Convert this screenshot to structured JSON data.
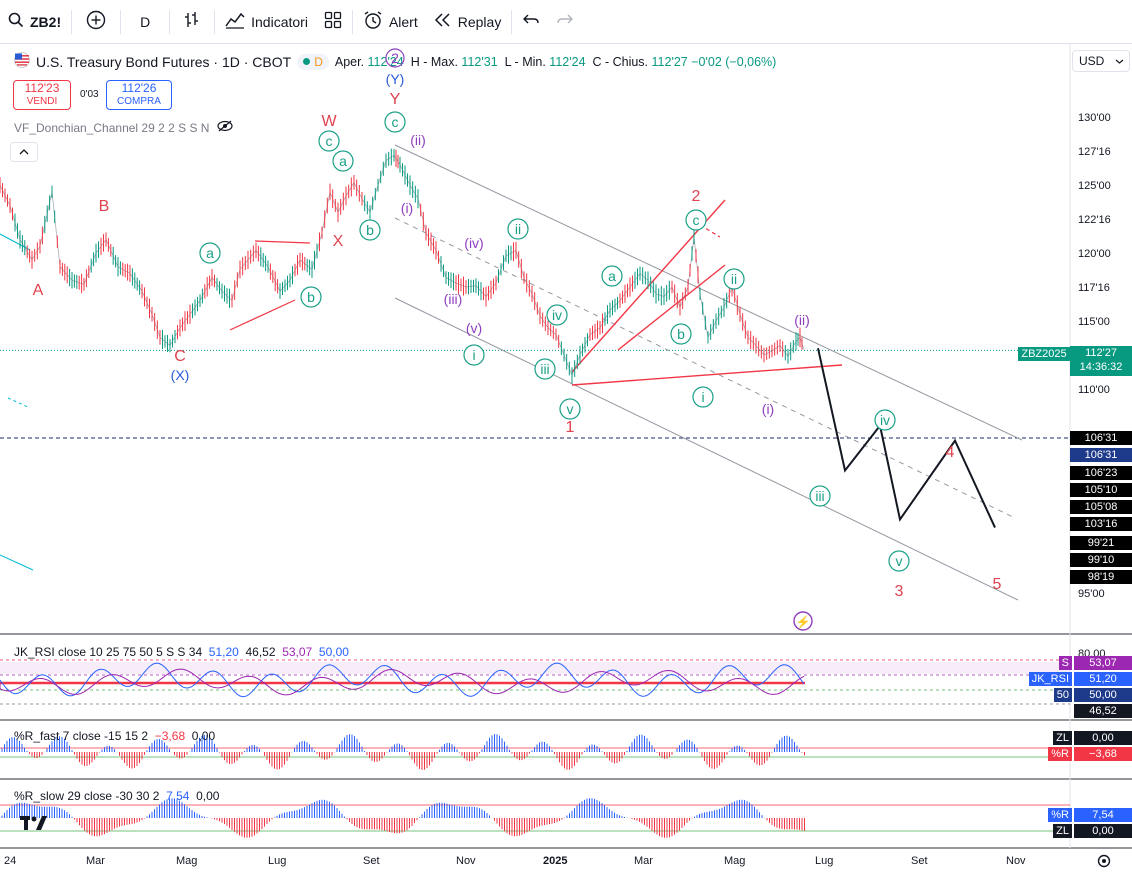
{
  "toolbar": {
    "symbol": "ZB2!",
    "interval": "D",
    "indicators_label": "Indicatori",
    "alert_label": "Alert",
    "replay_label": "Replay"
  },
  "legend": {
    "title": "U.S. Treasury Bond Futures · 1D · CBOT",
    "badge": "D",
    "open_label": "Aper.",
    "open": "112'24",
    "high_label": "H - Max.",
    "high": "112'31",
    "low_label": "L - Min.",
    "low": "112'24",
    "close_label": "C - Chius.",
    "close": "112'27",
    "change": "−0'02 (−0,06%)"
  },
  "sell": {
    "price": "112'23",
    "label": "VENDI"
  },
  "spread": "0'03",
  "buy": {
    "price": "112'26",
    "label": "COMPRA"
  },
  "indicator_name": "VF_Donchian_Channel 29 2 2 S S N",
  "currency": "USD",
  "colors": {
    "up": "#089981",
    "down": "#f23645",
    "wave_red": "#e0424f",
    "wave_teal": "#1aa087",
    "wave_purple": "#8e3fbf",
    "wave_blue": "#2a5bd7"
  },
  "chart_data": {
    "type": "line",
    "title": "U.S. Treasury Bond Futures · 1D · CBOT",
    "ylim": [
      93,
      132
    ],
    "y_ticks": [
      "130'00",
      "127'16",
      "125'00",
      "122'16",
      "120'00",
      "117'16",
      "115'00",
      "110'00",
      "95'00"
    ],
    "x_ticks": [
      "24",
      "Mar",
      "Mag",
      "Lug",
      "Set",
      "Nov",
      "2025",
      "Mar",
      "Mag",
      "Lug",
      "Set",
      "Nov"
    ],
    "series": [
      {
        "values": [
          [
            0,
            125
          ],
          [
            10,
            123.5
          ],
          [
            20,
            121
          ],
          [
            32,
            119.5
          ],
          [
            40,
            120.5
          ],
          [
            52,
            124.5
          ],
          [
            60,
            119
          ],
          [
            72,
            118
          ],
          [
            84,
            117.7
          ],
          [
            96,
            120
          ],
          [
            106,
            121
          ],
          [
            118,
            119
          ],
          [
            130,
            118.5
          ],
          [
            142,
            117.2
          ],
          [
            152,
            115.5
          ],
          [
            160,
            113.8
          ],
          [
            170,
            113.2
          ],
          [
            180,
            114.5
          ],
          [
            190,
            115.5
          ],
          [
            200,
            116.5
          ],
          [
            212,
            118.2
          ],
          [
            222,
            117.2
          ],
          [
            232,
            116.5
          ],
          [
            240,
            118.8
          ],
          [
            248,
            119.5
          ],
          [
            256,
            120.2
          ],
          [
            268,
            119
          ],
          [
            280,
            117.2
          ],
          [
            290,
            118
          ],
          [
            300,
            119.5
          ],
          [
            312,
            118.8
          ],
          [
            322,
            121.5
          ],
          [
            330,
            124.5
          ],
          [
            338,
            123
          ],
          [
            346,
            124.2
          ],
          [
            354,
            125.2
          ],
          [
            362,
            124
          ],
          [
            370,
            123
          ],
          [
            378,
            125
          ],
          [
            386,
            126.8
          ],
          [
            394,
            127.2
          ],
          [
            400,
            126.5
          ],
          [
            410,
            125
          ],
          [
            418,
            124
          ],
          [
            426,
            121.5
          ],
          [
            436,
            120.2
          ],
          [
            446,
            118.2
          ],
          [
            456,
            117.8
          ],
          [
            466,
            117.5
          ],
          [
            476,
            117.6
          ],
          [
            486,
            116.8
          ],
          [
            496,
            117.8
          ],
          [
            506,
            119.8
          ],
          [
            516,
            120.2
          ],
          [
            524,
            118.2
          ],
          [
            532,
            117
          ],
          [
            540,
            115.4
          ],
          [
            548,
            114.5
          ],
          [
            556,
            114
          ],
          [
            564,
            112.5
          ],
          [
            572,
            111
          ],
          [
            580,
            112.5
          ],
          [
            590,
            114
          ],
          [
            600,
            114.5
          ],
          [
            610,
            115.8
          ],
          [
            620,
            116.5
          ],
          [
            630,
            117.5
          ],
          [
            640,
            118.5
          ],
          [
            648,
            118
          ],
          [
            656,
            117
          ],
          [
            664,
            116.8
          ],
          [
            672,
            117.5
          ],
          [
            680,
            116
          ],
          [
            688,
            117.5
          ],
          [
            694,
            121.2
          ],
          [
            700,
            117
          ],
          [
            708,
            113.8
          ],
          [
            716,
            115
          ],
          [
            724,
            116
          ],
          [
            732,
            117.5
          ],
          [
            740,
            115.5
          ],
          [
            748,
            113.8
          ],
          [
            756,
            113.2
          ],
          [
            764,
            112.5
          ],
          [
            772,
            112.8
          ],
          [
            780,
            113.2
          ],
          [
            788,
            112.4
          ],
          [
            796,
            113.5
          ],
          [
            800,
            113.8
          ],
          [
            804,
            112.9
          ]
        ]
      }
    ],
    "projections": {
      "ylim_note": "black projection path",
      "path": [
        [
          818,
          113
        ],
        [
          845,
          104
        ],
        [
          880,
          107.3
        ],
        [
          900,
          100.4
        ],
        [
          955,
          106.2
        ],
        [
          995,
          99.8
        ]
      ]
    },
    "current_price_label": "ZBZ2025",
    "current_price": "112'27",
    "countdown": "14:36:32",
    "level_tags": [
      "106'31",
      "106'31",
      "106'23",
      "105'10",
      "105'08",
      "103'16",
      "99'21",
      "99'10",
      "98'19"
    ],
    "wave_labels": [
      {
        "t": "A",
        "c": "red"
      },
      {
        "t": "B",
        "c": "red"
      },
      {
        "t": "C",
        "c": "red"
      },
      {
        "t": "(X)",
        "c": "blue"
      },
      {
        "t": "a",
        "c": "teal"
      },
      {
        "t": "b",
        "c": "teal"
      },
      {
        "t": "W",
        "c": "red"
      },
      {
        "t": "X",
        "c": "red"
      },
      {
        "t": "c",
        "c": "teal"
      },
      {
        "t": "a",
        "c": "teal"
      },
      {
        "t": "b",
        "c": "teal"
      },
      {
        "t": "c",
        "c": "teal"
      },
      {
        "t": "Y",
        "c": "red"
      },
      {
        "t": "(Y)",
        "c": "blue"
      },
      {
        "t": "2",
        "c": "purple"
      },
      {
        "t": "(ii)",
        "c": "purple"
      },
      {
        "t": "(i)",
        "c": "purple"
      },
      {
        "t": "(iv)",
        "c": "purple"
      },
      {
        "t": "(iii)",
        "c": "purple"
      },
      {
        "t": "(v)",
        "c": "purple"
      },
      {
        "t": "i",
        "c": "teal"
      },
      {
        "t": "ii",
        "c": "teal"
      },
      {
        "t": "iii",
        "c": "teal"
      },
      {
        "t": "iv",
        "c": "teal"
      },
      {
        "t": "v",
        "c": "teal"
      },
      {
        "t": "1",
        "c": "red"
      },
      {
        "t": "a",
        "c": "teal"
      },
      {
        "t": "b",
        "c": "teal"
      },
      {
        "t": "c",
        "c": "teal"
      },
      {
        "t": "2",
        "c": "red"
      },
      {
        "t": "ii",
        "c": "teal"
      },
      {
        "t": "i",
        "c": "teal"
      },
      {
        "t": "(i)",
        "c": "purple"
      },
      {
        "t": "(ii)",
        "c": "purple"
      },
      {
        "t": "iv",
        "c": "teal"
      },
      {
        "t": "iii",
        "c": "teal"
      },
      {
        "t": "v",
        "c": "teal"
      },
      {
        "t": "3",
        "c": "red"
      },
      {
        "t": "4",
        "c": "red"
      },
      {
        "t": "5",
        "c": "red"
      }
    ]
  },
  "rsi": {
    "label": "JK_RSI close 10 25 75 50 5 S S 34",
    "v1": "51,20",
    "v2": "46,52",
    "v3": "53,07",
    "v4": "50,00",
    "axis": "80,00",
    "tags": [
      {
        "k": "S",
        "v": "53,07"
      },
      {
        "k": "JK_RSI",
        "v": "51,20"
      },
      {
        "k": "50",
        "v": "50,00"
      },
      {
        "k": "",
        "v": "46,52"
      }
    ]
  },
  "wr_fast": {
    "label": "%R_fast 7 close -15 15 2",
    "v1": "−3,68",
    "v2": "0,00",
    "tags": [
      {
        "k": "ZL",
        "v": "0,00"
      },
      {
        "k": "%R",
        "v": "−3,68"
      }
    ]
  },
  "wr_slow": {
    "label": "%R_slow 29 close -30 30 2",
    "v1": "7,54",
    "v2": "0,00",
    "tags": [
      {
        "k": "%R",
        "v": "7,54"
      },
      {
        "k": "ZL",
        "v": "0,00"
      }
    ]
  }
}
